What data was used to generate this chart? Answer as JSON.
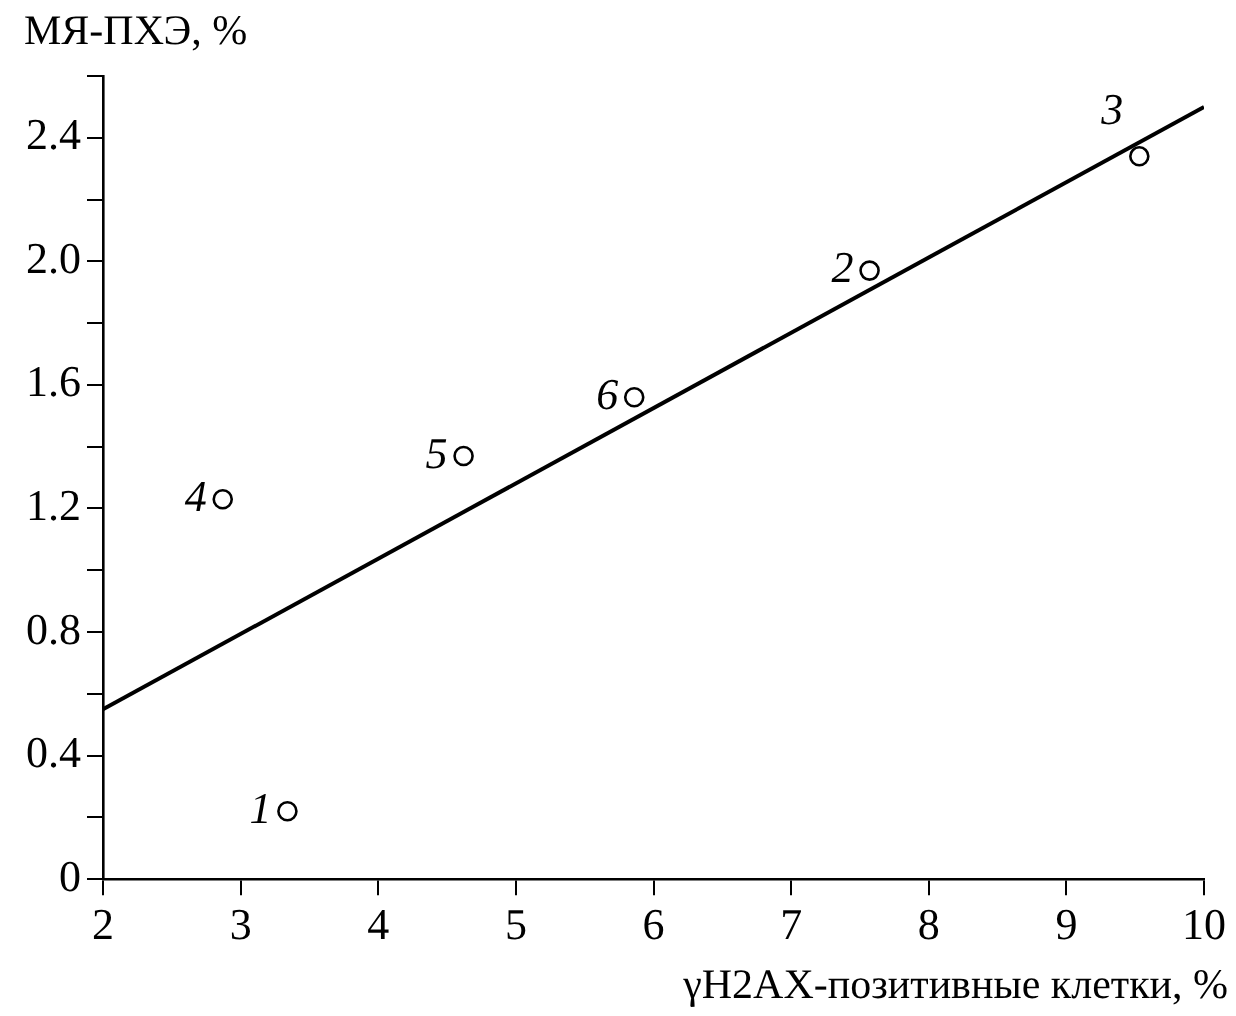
{
  "chart_data": {
    "type": "scatter",
    "xlabel": "γH2AX-позитивные клетки, %",
    "ylabel": "МЯ-ПХЭ, %",
    "xlim": [
      2,
      10
    ],
    "xticks": [
      2,
      3,
      4,
      5,
      6,
      7,
      8,
      9,
      10
    ],
    "ylim": [
      0,
      2.6
    ],
    "yticks": [
      0,
      {
        "value": 0.2,
        "label": null
      },
      0.4,
      {
        "value": 0.6,
        "label": null
      },
      0.8,
      {
        "value": 1.0,
        "label": null
      },
      1.2,
      {
        "value": 1.4,
        "label": null
      },
      1.6,
      {
        "value": 1.8,
        "label": null
      },
      {
        "value": 2,
        "label": "2.0"
      },
      {
        "value": 2.2,
        "label": null
      },
      2.4,
      {
        "value": 2.6,
        "label": null
      }
    ],
    "grid": false,
    "legend": false,
    "marker": "circle",
    "series": [
      {
        "type": "scatter",
        "color": "#000000",
        "x": [
          3.34,
          7.57,
          9.53,
          2.87,
          4.62,
          5.86
        ],
        "values": [
          0.22,
          1.97,
          2.34,
          1.23,
          1.37,
          1.56
        ]
      },
      {
        "type": "line",
        "color": "#000000",
        "marker": "none",
        "line_style": "solid",
        "x": [
          2,
          10
        ],
        "values": [
          0.55,
          2.5
        ]
      }
    ],
    "annotations": [
      {
        "text": "1",
        "x": 3.34,
        "y": 0.22
      },
      {
        "text": "2",
        "x": 7.57,
        "y": 1.97
      },
      {
        "text": "3",
        "x": 9.53,
        "y": 2.34
      },
      {
        "text": "4",
        "x": 2.87,
        "y": 1.23
      },
      {
        "text": "5",
        "x": 4.62,
        "y": 1.37
      },
      {
        "text": "6",
        "x": 5.86,
        "y": 1.56
      }
    ]
  }
}
